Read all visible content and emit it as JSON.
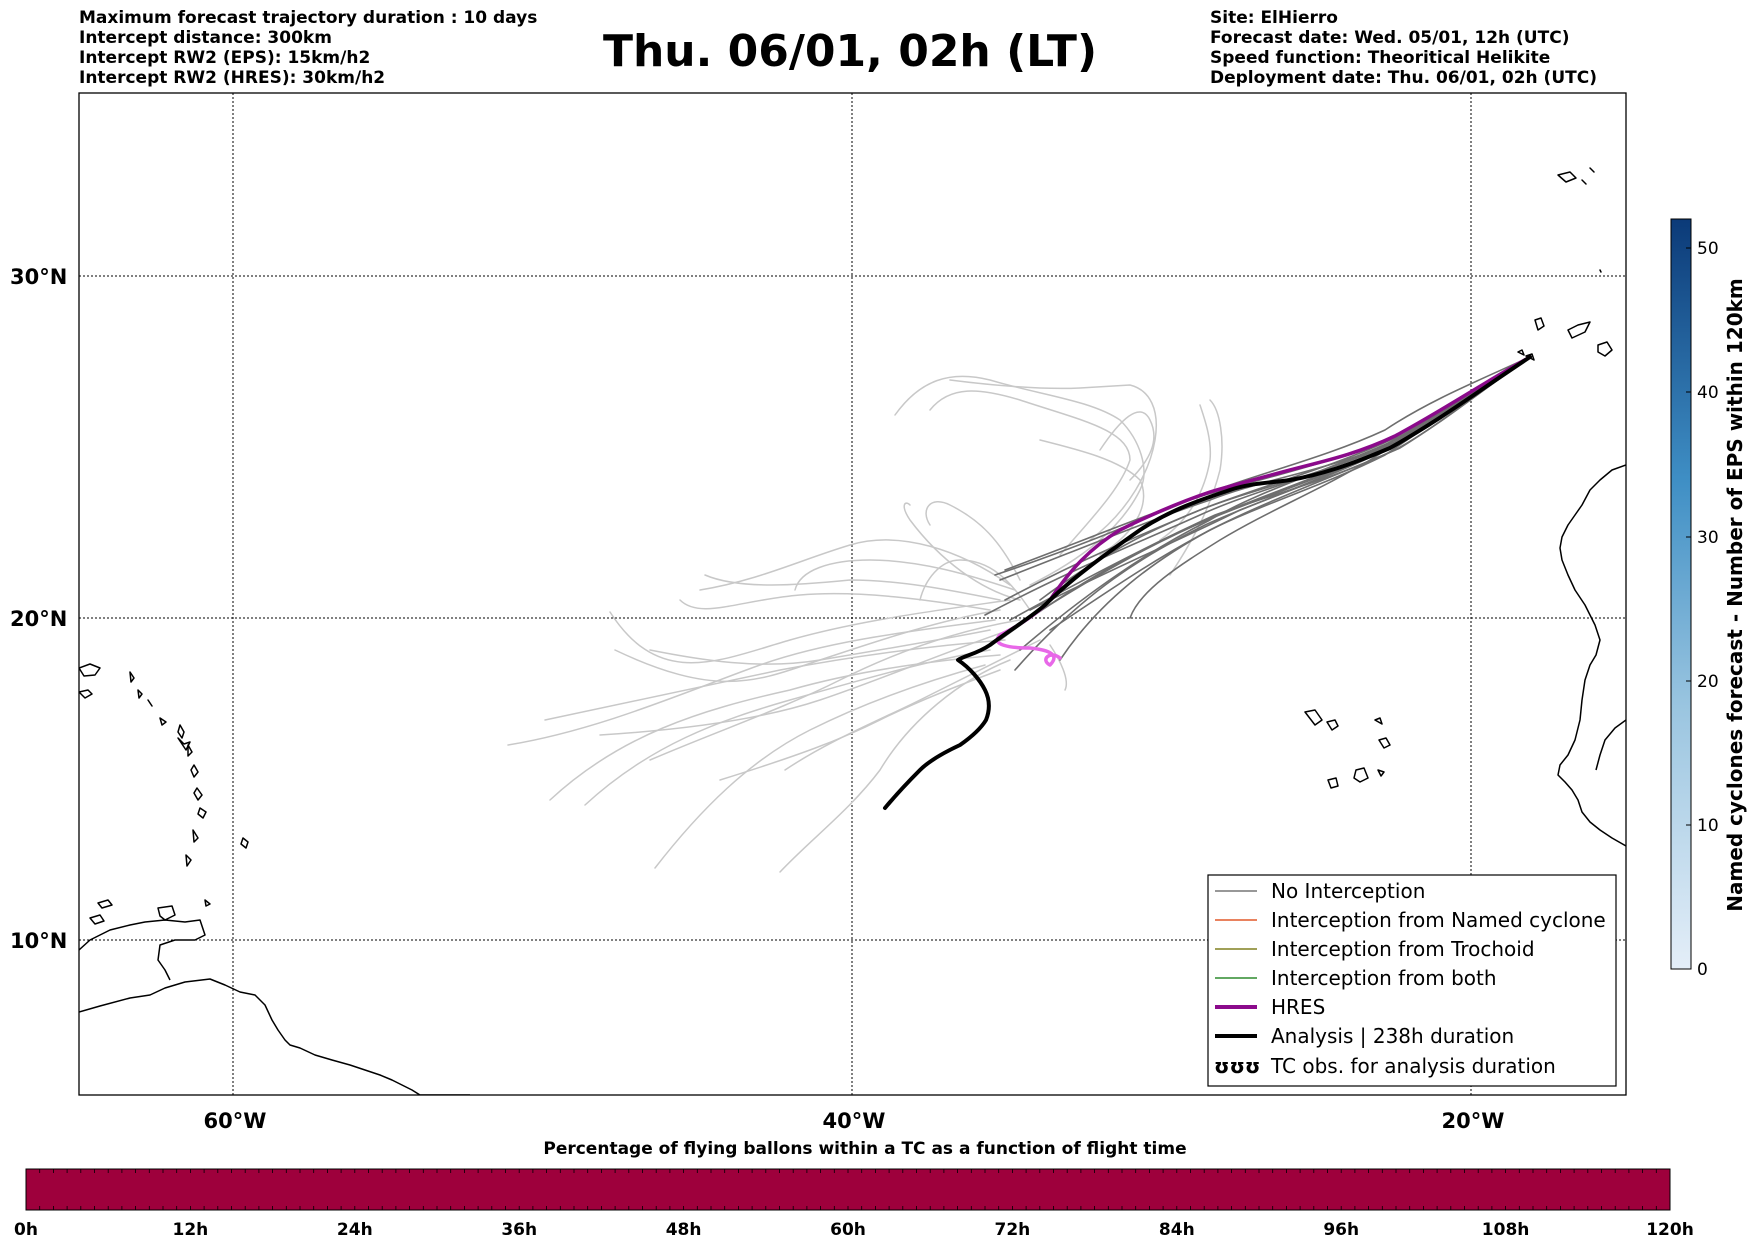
{
  "header": {
    "left": [
      "Maximum forecast trajectory duration : 10 days",
      "Intercept distance: 300km",
      "Intercept RW2 (EPS):  15km/h2",
      "Intercept RW2 (HRES): 30km/h2"
    ],
    "title": "Thu. 06/01, 02h (LT)",
    "right": [
      "Site: ElHierro",
      "Forecast date: Wed. 05/01, 12h (UTC)",
      "Speed function: Theoritical Helikite",
      "Deployment date: Thu. 06/01, 02h (UTC)"
    ]
  },
  "map": {
    "lat_labels": [
      "30°N",
      "20°N",
      "10°N"
    ],
    "lon_labels": [
      "60°W",
      "40°W",
      "20°W"
    ],
    "lon_range": [
      -65,
      -15
    ],
    "lat_range": [
      5.3,
      34.5
    ],
    "grid_lines": true
  },
  "legend": {
    "position": "lower-right",
    "items": [
      {
        "label": "No Interception",
        "color": "#777777",
        "style": "thin"
      },
      {
        "label": "Interception from Named cyclone",
        "color": "#e2582a",
        "style": "thin"
      },
      {
        "label": "Interception from Trochoid",
        "color": "#808020",
        "style": "thin"
      },
      {
        "label": "Interception from both",
        "color": "#2e8b2e",
        "style": "thin"
      },
      {
        "label": "HRES",
        "color": "#8b0a8b",
        "style": "thick"
      },
      {
        "label": "Analysis | 238h duration",
        "color": "#000000",
        "style": "thick"
      },
      {
        "label": "TC obs. for analysis duration",
        "color": "#000000",
        "style": "symbol",
        "symbol": "ʊʊʊ"
      }
    ]
  },
  "colorbar_right": {
    "label": "Named cyclones forecast - Number of EPS within 120km",
    "ticks": [
      "0",
      "10",
      "20",
      "30",
      "40",
      "50"
    ],
    "max": 52,
    "color_low": "#e4eef8",
    "color_high": "#0b3a78"
  },
  "colorbar_bottom": {
    "title": "Percentage of flying ballons within a TC as a function of flight time",
    "ticks": [
      "0h",
      "12h",
      "24h",
      "36h",
      "48h",
      "60h",
      "72h",
      "84h",
      "96h",
      "108h",
      "120h"
    ],
    "fill_color": "#9e003c"
  },
  "colors": {
    "eps_dark": "#6e6e6e",
    "eps_light": "#c8c8c8",
    "hres": "#8b0a8b",
    "hres_late": "#e868e8",
    "analysis": "#000000"
  }
}
